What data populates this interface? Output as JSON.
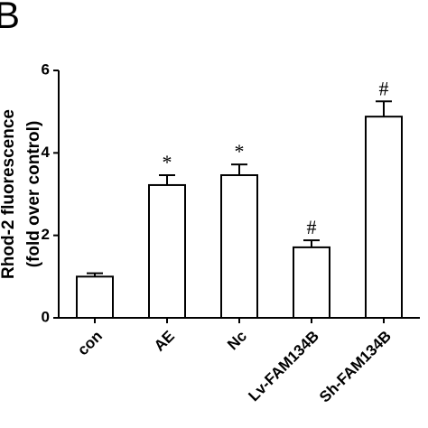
{
  "chart_data": {
    "type": "bar",
    "panel_label": "B",
    "ylabel": [
      "Rhod-2 fluorescence",
      "(fold over control)"
    ],
    "categories": [
      "con",
      "AE",
      "Nc",
      "Lv-FAM134B",
      "Sh-FAM134B"
    ],
    "values": [
      1.0,
      3.22,
      3.46,
      1.71,
      4.88
    ],
    "errors": [
      0.08,
      0.24,
      0.26,
      0.17,
      0.37
    ],
    "markers": [
      null,
      "*",
      "*",
      "#",
      "#"
    ],
    "color": "#ffffff",
    "ylim": [
      0,
      6
    ],
    "yticks": [
      0,
      2,
      4,
      6
    ],
    "grid": false
  }
}
